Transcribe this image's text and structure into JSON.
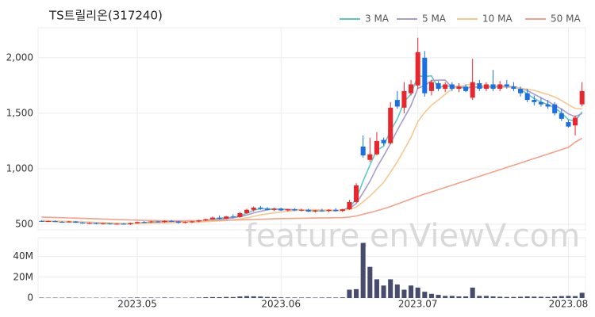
{
  "chart_data": {
    "type": "candlestick",
    "title": "TS트릴리온(317240)",
    "watermark": "feature.enViewV.com",
    "up_color": "#e8262d",
    "down_color": "#1c6fe3",
    "categories": [
      null,
      null,
      null,
      null,
      null,
      null,
      null,
      null,
      null,
      null,
      null,
      null,
      null,
      null,
      "2023.05",
      null,
      null,
      null,
      null,
      null,
      null,
      null,
      null,
      null,
      null,
      null,
      null,
      null,
      null,
      null,
      null,
      null,
      null,
      null,
      null,
      "2023.06",
      null,
      null,
      null,
      null,
      null,
      null,
      null,
      null,
      null,
      null,
      null,
      null,
      null,
      null,
      null,
      null,
      null,
      null,
      null,
      "2023.07",
      null,
      null,
      null,
      null,
      null,
      null,
      null,
      null,
      null,
      null,
      null,
      null,
      null,
      null,
      null,
      null,
      null,
      null,
      null,
      null,
      null,
      "2023.08",
      null,
      null
    ],
    "open": [
      530,
      525,
      528,
      522,
      520,
      525,
      515,
      510,
      512,
      505,
      508,
      502,
      505,
      500,
      510,
      520,
      518,
      525,
      520,
      530,
      525,
      515,
      520,
      525,
      535,
      545,
      560,
      550,
      570,
      565,
      600,
      630,
      650,
      640,
      630,
      640,
      625,
      635,
      625,
      630,
      615,
      625,
      620,
      630,
      620,
      635,
      700,
      1200,
      1080,
      1130,
      1260,
      1230,
      1620,
      1550,
      1680,
      1750,
      2000,
      1700,
      1770,
      1720,
      1760,
      1720,
      1740,
      1640,
      1770,
      1720,
      1760,
      1720,
      1760,
      1740,
      1720,
      1680,
      1620,
      1600,
      1580,
      1580,
      1500,
      1420,
      1390,
      1580
    ],
    "high": [
      535,
      532,
      533,
      528,
      530,
      528,
      520,
      518,
      515,
      512,
      512,
      510,
      512,
      515,
      525,
      528,
      530,
      532,
      535,
      538,
      530,
      525,
      530,
      540,
      550,
      570,
      580,
      575,
      590,
      610,
      640,
      660,
      665,
      655,
      650,
      650,
      640,
      645,
      640,
      640,
      630,
      640,
      635,
      645,
      640,
      720,
      870,
      1300,
      1280,
      1330,
      1280,
      1600,
      1700,
      1780,
      1800,
      2180,
      2060,
      1800,
      1790,
      1780,
      1780,
      1770,
      1760,
      1990,
      1800,
      1780,
      1890,
      1790,
      1800,
      1780,
      1740,
      1720,
      1660,
      1640,
      1620,
      1600,
      1540,
      1440,
      1480,
      1780
    ],
    "low": [
      522,
      520,
      520,
      515,
      515,
      512,
      505,
      502,
      500,
      498,
      498,
      496,
      498,
      495,
      505,
      512,
      512,
      515,
      515,
      520,
      505,
      508,
      512,
      518,
      528,
      540,
      545,
      545,
      555,
      560,
      595,
      615,
      630,
      625,
      620,
      620,
      615,
      620,
      615,
      610,
      605,
      615,
      610,
      615,
      610,
      630,
      695,
      1100,
      1060,
      1120,
      1210,
      1220,
      1540,
      1500,
      1660,
      1720,
      1650,
      1660,
      1700,
      1690,
      1700,
      1690,
      1690,
      1620,
      1700,
      1700,
      1700,
      1700,
      1720,
      1700,
      1650,
      1600,
      1570,
      1560,
      1540,
      1480,
      1430,
      1370,
      1300,
      1560
    ],
    "close": [
      525,
      528,
      522,
      520,
      525,
      515,
      510,
      512,
      505,
      508,
      502,
      505,
      500,
      510,
      520,
      518,
      525,
      520,
      530,
      525,
      515,
      520,
      525,
      535,
      545,
      560,
      550,
      570,
      565,
      600,
      630,
      650,
      640,
      630,
      640,
      625,
      635,
      625,
      630,
      615,
      625,
      620,
      630,
      620,
      635,
      700,
      850,
      1120,
      1130,
      1250,
      1230,
      1550,
      1560,
      1700,
      1760,
      2050,
      1680,
      1780,
      1720,
      1760,
      1720,
      1740,
      1700,
      1780,
      1720,
      1760,
      1720,
      1760,
      1740,
      1720,
      1680,
      1620,
      1600,
      1580,
      1560,
      1500,
      1450,
      1380,
      1460,
      1700
    ],
    "series": [
      {
        "name": "3 MA",
        "color": "#5cc9c1",
        "values": [
          527,
          527,
          525,
          523,
          522,
          520,
          517,
          512,
          509,
          508,
          505,
          505,
          502,
          505,
          510,
          516,
          521,
          521,
          525,
          525,
          523,
          520,
          520,
          527,
          535,
          547,
          552,
          560,
          562,
          578,
          598,
          627,
          640,
          640,
          637,
          632,
          633,
          628,
          630,
          623,
          623,
          620,
          625,
          623,
          628,
          652,
          728,
          890,
          1033,
          1167,
          1203,
          1343,
          1447,
          1603,
          1673,
          1837,
          1830,
          1837,
          1727,
          1753,
          1733,
          1740,
          1720,
          1740,
          1733,
          1753,
          1733,
          1747,
          1740,
          1740,
          1713,
          1673,
          1633,
          1600,
          1580,
          1547,
          1503,
          1443,
          1430,
          1513
        ]
      },
      {
        "name": "5 MA",
        "color": "#a99cca",
        "values": [
          528,
          528,
          526,
          524,
          524,
          522,
          518,
          516,
          513,
          510,
          507,
          506,
          504,
          506,
          507,
          511,
          515,
          519,
          523,
          524,
          523,
          522,
          523,
          524,
          528,
          537,
          543,
          552,
          558,
          569,
          583,
          603,
          617,
          630,
          638,
          637,
          634,
          631,
          631,
          626,
          626,
          623,
          624,
          622,
          626,
          642,
          687,
          785,
          887,
          1010,
          1116,
          1226,
          1348,
          1458,
          1570,
          1724,
          1750,
          1794,
          1798,
          1798,
          1732,
          1744,
          1728,
          1740,
          1732,
          1740,
          1736,
          1748,
          1740,
          1740,
          1724,
          1704,
          1672,
          1640,
          1608,
          1572,
          1538,
          1494,
          1470,
          1498
        ]
      },
      {
        "name": "10 MA",
        "color": "#f3c98f",
        "values": [
          535,
          533,
          530,
          528,
          526,
          525,
          522,
          520,
          518,
          517,
          513,
          511,
          509,
          508,
          508,
          508,
          510,
          511,
          513,
          515,
          516,
          517,
          519,
          521,
          523,
          527,
          530,
          535,
          540,
          547,
          558,
          571,
          584,
          594,
          603,
          610,
          618,
          623,
          630,
          632,
          632,
          629,
          628,
          627,
          626,
          633,
          654,
          703,
          753,
          815,
          876,
          969,
          1063,
          1171,
          1283,
          1424,
          1507,
          1573,
          1620,
          1671,
          1720,
          1739,
          1753,
          1765,
          1761,
          1730,
          1734,
          1732,
          1734,
          1730,
          1726,
          1716,
          1706,
          1686,
          1670,
          1646,
          1615,
          1577,
          1542,
          1540
        ]
      },
      {
        "name": "50 MA",
        "color": "#f4a08a",
        "values": [
          565,
          563,
          561,
          559,
          557,
          555,
          553,
          551,
          549,
          547,
          545,
          543,
          541,
          539,
          537,
          535,
          534,
          533,
          532,
          532,
          532,
          532,
          533,
          533,
          534,
          535,
          536,
          537,
          538,
          539,
          541,
          543,
          545,
          547,
          549,
          551,
          552,
          553,
          554,
          555,
          556,
          557,
          558,
          559,
          560,
          565,
          575,
          590,
          605,
          622,
          640,
          660,
          682,
          705,
          728,
          752,
          772,
          792,
          812,
          832,
          852,
          872,
          892,
          912,
          932,
          952,
          972,
          992,
          1012,
          1032,
          1052,
          1072,
          1092,
          1112,
          1132,
          1152,
          1172,
          1192,
          1240,
          1275
        ]
      }
    ],
    "ylim": [
      450,
      2270
    ],
    "yticks": [
      500,
      {
        "value": 1000,
        "label": "1,000"
      },
      {
        "value": 1500,
        "label": "1,500"
      },
      {
        "value": 2000,
        "label": "2,000"
      }
    ],
    "grid": true,
    "volume": {
      "color": "#474c6e",
      "ylim": [
        0,
        58000000
      ],
      "yticks": [
        0,
        {
          "value": 20000000,
          "label": "20M"
        },
        {
          "value": 40000000,
          "label": "40M"
        }
      ],
      "values": [
        400000,
        300000,
        350000,
        300000,
        400000,
        300000,
        300000,
        250000,
        300000,
        250000,
        300000,
        250000,
        300000,
        400000,
        500000,
        400000,
        450000,
        350000,
        500000,
        400000,
        350000,
        300000,
        400000,
        500000,
        700000,
        900000,
        800000,
        1000000,
        900000,
        1500000,
        1800000,
        1600000,
        1400000,
        1000000,
        900000,
        600000,
        500000,
        500000,
        450000,
        500000,
        400000,
        450000,
        500000,
        450000,
        600000,
        8000000,
        8500000,
        53000000,
        30000000,
        18000000,
        12000000,
        18000000,
        13000000,
        8000000,
        12000000,
        10000000,
        6000000,
        4000000,
        3000000,
        2000000,
        2000000,
        1500000,
        1500000,
        10000000,
        2000000,
        2000000,
        1500000,
        1200000,
        1000000,
        1000000,
        1200000,
        1500000,
        1300000,
        1200000,
        1000000,
        1500000,
        1800000,
        2000000,
        1800000,
        5000000
      ]
    }
  }
}
